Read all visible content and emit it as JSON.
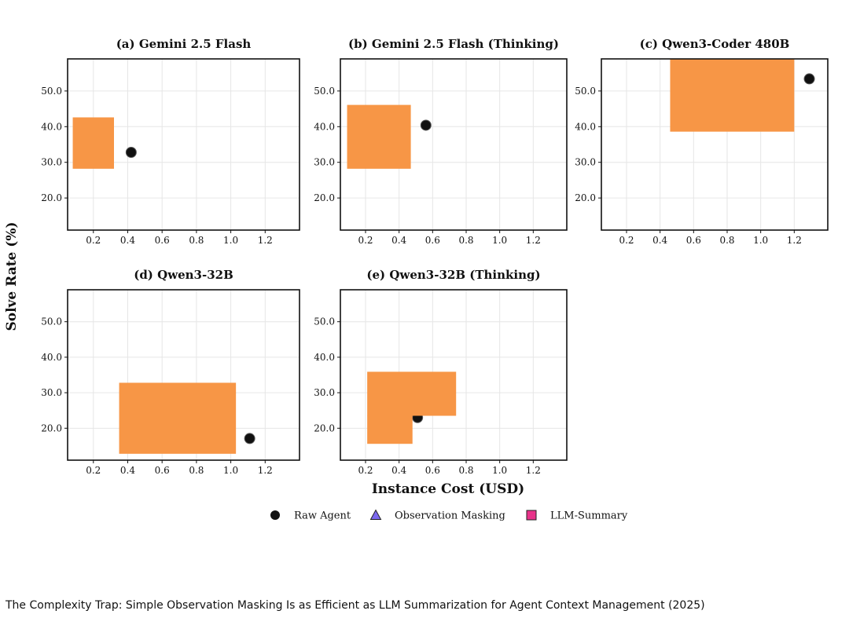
{
  "colors": {
    "raw_agent": "#111111",
    "observation_masking": "#7b68ee",
    "llm_summary": "#e8338a",
    "occluding_box": "#f79646",
    "grid": "#e6e6e6"
  },
  "figure": {
    "ylabel": "Solve Rate (%)",
    "xlabel": "Instance Cost (USD)",
    "legend": [
      {
        "label": "Raw Agent",
        "marker": "circle",
        "color_key": "raw_agent"
      },
      {
        "label": "Observation Masking",
        "marker": "triangle",
        "color_key": "observation_masking"
      },
      {
        "label": "LLM-Summary",
        "marker": "square",
        "color_key": "llm_summary"
      }
    ]
  },
  "chart_data": [
    {
      "type": "scatter",
      "title": "(a) Gemini 2.5 Flash",
      "xlim": [
        0.05,
        1.4
      ],
      "ylim": [
        11,
        59
      ],
      "xticks": [
        0.2,
        0.4,
        0.6,
        0.8,
        1.0,
        1.2
      ],
      "xtick_labels": [
        "0.2",
        "0.4",
        "0.6",
        "0.8",
        "1.0",
        "1.2"
      ],
      "yticks": [
        20,
        30,
        40,
        50
      ],
      "ytick_labels": [
        "20.0",
        "30.0",
        "40.0",
        "50.0"
      ],
      "series": [
        {
          "name": "Raw Agent",
          "points": [
            {
              "x": 0.42,
              "y": 32.8
            }
          ]
        }
      ],
      "occluding_box": {
        "x0": 0.08,
        "x1": 0.32,
        "y0": 28.2,
        "y1": 42.6
      }
    },
    {
      "type": "scatter",
      "title": "(b) Gemini 2.5 Flash (Thinking)",
      "xlim": [
        0.05,
        1.4
      ],
      "ylim": [
        11,
        59
      ],
      "xticks": [
        0.2,
        0.4,
        0.6,
        0.8,
        1.0,
        1.2
      ],
      "xtick_labels": [
        "0.2",
        "0.4",
        "0.6",
        "0.8",
        "1.0",
        "1.2"
      ],
      "yticks": [
        20,
        30,
        40,
        50
      ],
      "ytick_labels": [
        "20.0",
        "30.0",
        "40.0",
        "50.0"
      ],
      "series": [
        {
          "name": "Raw Agent",
          "points": [
            {
              "x": 0.56,
              "y": 40.4
            }
          ]
        }
      ],
      "occluding_box": {
        "x0": 0.09,
        "x1": 0.47,
        "y0": 28.2,
        "y1": 46.1
      }
    },
    {
      "type": "scatter",
      "title": "(c) Qwen3-Coder 480B",
      "xlim": [
        0.05,
        1.4
      ],
      "ylim": [
        11,
        59
      ],
      "xticks": [
        0.2,
        0.4,
        0.6,
        0.8,
        1.0,
        1.2
      ],
      "xtick_labels": [
        "0.2",
        "0.4",
        "0.6",
        "0.8",
        "1.0",
        "1.2"
      ],
      "yticks": [
        20,
        30,
        40,
        50
      ],
      "ytick_labels": [
        "20.0",
        "30.0",
        "40.0",
        "50.0"
      ],
      "series": [
        {
          "name": "Raw Agent",
          "points": [
            {
              "x": 1.29,
              "y": 53.4
            }
          ]
        }
      ],
      "occluding_box": {
        "x0": 0.46,
        "x1": 1.2,
        "y0": 38.6,
        "y1": 59
      }
    },
    {
      "type": "scatter",
      "title": "(d) Qwen3-32B",
      "xlim": [
        0.05,
        1.4
      ],
      "ylim": [
        11,
        59
      ],
      "xticks": [
        0.2,
        0.4,
        0.6,
        0.8,
        1.0,
        1.2
      ],
      "xtick_labels": [
        "0.2",
        "0.4",
        "0.6",
        "0.8",
        "1.0",
        "1.2"
      ],
      "yticks": [
        20,
        30,
        40,
        50
      ],
      "ytick_labels": [
        "20.0",
        "30.0",
        "40.0",
        "50.0"
      ],
      "series": [
        {
          "name": "Raw Agent",
          "points": [
            {
              "x": 1.11,
              "y": 17.1
            }
          ]
        }
      ],
      "occluding_box": {
        "x0": 0.35,
        "x1": 1.03,
        "y0": 12.8,
        "y1": 32.8
      }
    },
    {
      "type": "scatter",
      "title": "(e) Qwen3-32B (Thinking)",
      "xlim": [
        0.05,
        1.4
      ],
      "ylim": [
        11,
        59
      ],
      "xticks": [
        0.2,
        0.4,
        0.6,
        0.8,
        1.0,
        1.2
      ],
      "xtick_labels": [
        "0.2",
        "0.4",
        "0.6",
        "0.8",
        "1.0",
        "1.2"
      ],
      "yticks": [
        20,
        30,
        40,
        50
      ],
      "ytick_labels": [
        "20.0",
        "30.0",
        "40.0",
        "50.0"
      ],
      "series": [
        {
          "name": "Raw Agent",
          "points": [
            {
              "x": 0.51,
              "y": 23.0
            }
          ]
        }
      ],
      "occluding_box": {
        "x0": 0.21,
        "x1": 0.74,
        "y0": 23.5,
        "y1": 35.9
      },
      "occluding_box_2": {
        "x0": 0.21,
        "x1": 0.48,
        "y0": 15.6,
        "y1": 23.6
      }
    }
  ],
  "caption": "The Complexity Trap: Simple Observation Masking Is as Efficient as LLM Summarization for Agent Context Management (2025)"
}
